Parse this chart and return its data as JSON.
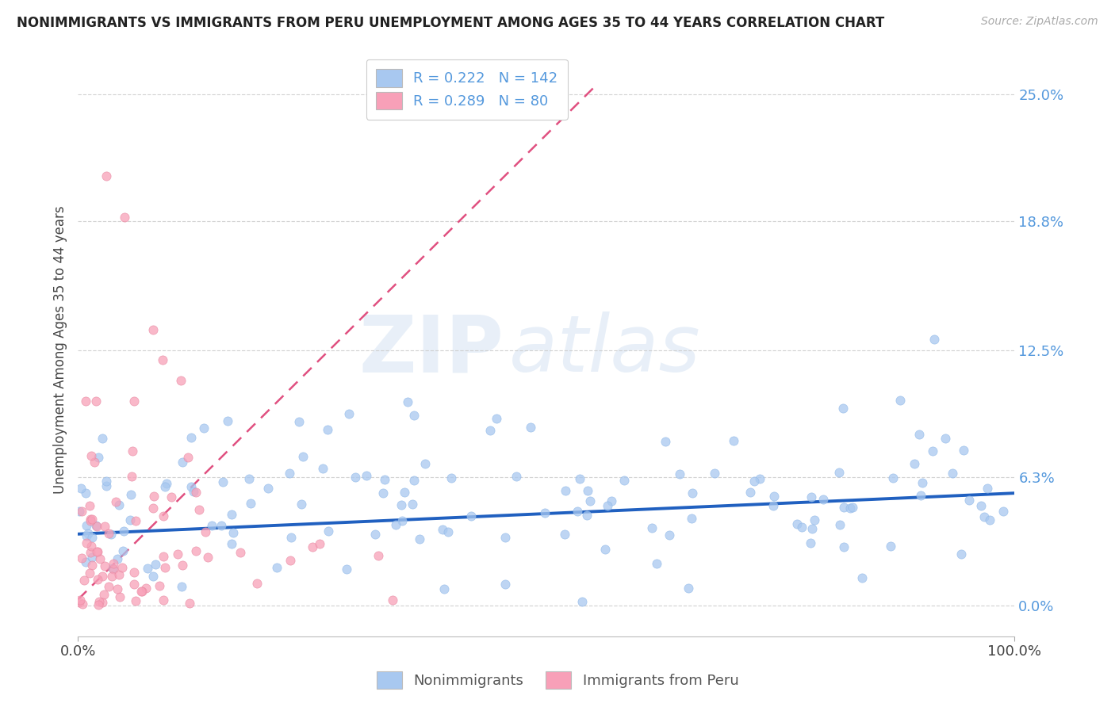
{
  "title": "NONIMMIGRANTS VS IMMIGRANTS FROM PERU UNEMPLOYMENT AMONG AGES 35 TO 44 YEARS CORRELATION CHART",
  "source": "Source: ZipAtlas.com",
  "ylabel": "Unemployment Among Ages 35 to 44 years",
  "ytick_values": [
    0.0,
    6.3,
    12.5,
    18.8,
    25.0
  ],
  "xlim": [
    0,
    100
  ],
  "ylim": [
    0,
    25.0
  ],
  "nonimm_R": 0.222,
  "nonimm_N": 142,
  "imm_R": 0.289,
  "imm_N": 80,
  "nonimm_color": "#a8c8f0",
  "imm_color": "#f8a0b8",
  "nonimm_line_color": "#2060c0",
  "imm_line_color": "#e05080",
  "legend_label_nonimm": "Nonimmigrants",
  "legend_label_imm": "Immigrants from Peru",
  "watermark_zip": "ZIP",
  "watermark_atlas": "atlas",
  "background_color": "#ffffff",
  "grid_color": "#cccccc",
  "title_fontsize": 12,
  "label_fontsize": 13,
  "ylabel_fontsize": 12,
  "right_label_color": "#5599dd",
  "source_color": "#aaaaaa"
}
